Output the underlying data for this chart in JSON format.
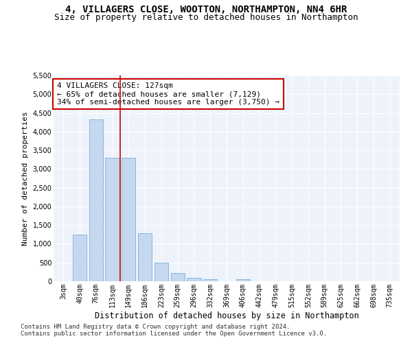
{
  "title": "4, VILLAGERS CLOSE, WOOTTON, NORTHAMPTON, NN4 6HR",
  "subtitle": "Size of property relative to detached houses in Northampton",
  "xlabel": "Distribution of detached houses by size in Northampton",
  "ylabel": "Number of detached properties",
  "footnote1": "Contains HM Land Registry data © Crown copyright and database right 2024.",
  "footnote2": "Contains public sector information licensed under the Open Government Licence v3.0.",
  "categories": [
    "3sqm",
    "40sqm",
    "76sqm",
    "113sqm",
    "149sqm",
    "186sqm",
    "223sqm",
    "259sqm",
    "296sqm",
    "332sqm",
    "369sqm",
    "406sqm",
    "442sqm",
    "479sqm",
    "515sqm",
    "552sqm",
    "589sqm",
    "625sqm",
    "662sqm",
    "698sqm",
    "735sqm"
  ],
  "bar_values": [
    0,
    1250,
    4330,
    3300,
    3300,
    1280,
    490,
    215,
    90,
    50,
    0,
    60,
    0,
    0,
    0,
    0,
    0,
    0,
    0,
    0,
    0
  ],
  "bar_color": "#c5d8f0",
  "bar_edge_color": "#7aaed6",
  "vline_x_index": 3,
  "vline_color": "#cc0000",
  "annotation_text": "4 VILLAGERS CLOSE: 127sqm\n← 65% of detached houses are smaller (7,129)\n34% of semi-detached houses are larger (3,750) →",
  "annotation_box_color": "#ffffff",
  "annotation_box_edge": "#cc0000",
  "ylim": [
    0,
    5500
  ],
  "yticks": [
    0,
    500,
    1000,
    1500,
    2000,
    2500,
    3000,
    3500,
    4000,
    4500,
    5000,
    5500
  ],
  "bg_color": "#eef3fb",
  "grid_color": "#ffffff",
  "fig_bg_color": "#ffffff",
  "title_fontsize": 10,
  "subtitle_fontsize": 9,
  "xlabel_fontsize": 8.5,
  "ylabel_fontsize": 8,
  "tick_fontsize": 7,
  "annotation_fontsize": 8,
  "footnote_fontsize": 6.5
}
